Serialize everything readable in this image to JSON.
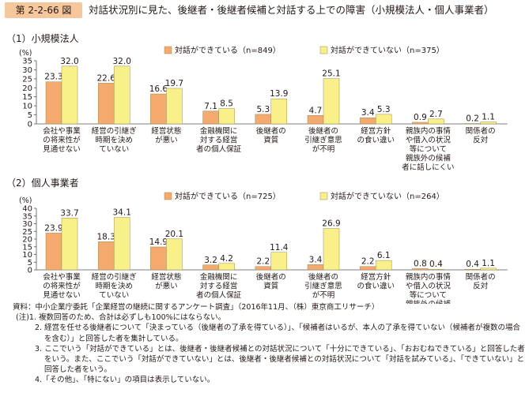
{
  "figure": {
    "number": "第 2-2-66 図",
    "title": "対話状況別に見た、後継者・後継者候補と対話する上での障害（小規模法人・個人事業者）"
  },
  "colors": {
    "series1": "#f4aa6e",
    "series2": "#faf08a",
    "stroke": "#9a8b55",
    "axis": "#555555",
    "header": "#f6c79c"
  },
  "chart_data": [
    {
      "type": "bar",
      "section_label": "（1）小規模法人",
      "unit_label": "(%)",
      "ylim": [
        0,
        35
      ],
      "yticks": [
        0,
        5,
        10,
        15,
        20,
        25,
        30,
        35
      ],
      "categories": [
        "会社や事業\n の将来性が\n 見通せない",
        "経営の引継ぎ\n時期を決め\nていない",
        "経営状態\nが悪い",
        "金融機関に\n対する経営\n者の個人保証",
        "後継者の\n資質",
        "後継者の\n引継ぎ意思\nが不明",
        "経営方針\nの食い違い",
        "親族内の事情\nや借入の状況\n等について\n親族外の候補\n者に話しにくい",
        "関係者の\n反対"
      ],
      "series": [
        {
          "name": "対話ができている（n=849）",
          "values": [
            23.3,
            22.6,
            16.6,
            7.1,
            5.3,
            4.7,
            3.4,
            0.9,
            0.2
          ]
        },
        {
          "name": "対話ができていない（n=375）",
          "values": [
            32.0,
            32.0,
            19.7,
            8.5,
            13.9,
            25.1,
            5.3,
            2.7,
            1.1
          ]
        }
      ]
    },
    {
      "type": "bar",
      "section_label": "（2）個人事業者",
      "unit_label": "(%)",
      "ylim": [
        0,
        40
      ],
      "yticks": [
        0,
        5,
        10,
        15,
        20,
        25,
        30,
        35,
        40
      ],
      "categories": [
        "会社や事業\n の将来性が\n 見通せない",
        "経営の引継ぎ\n時期を決め\nていない",
        "経営状態\nが悪い",
        "金融機関に\n対する経営\n者の個人保証",
        "後継者の\n資質",
        "後継者の\n引継ぎ意思\nが不明",
        "経営方針\nの食い違い",
        "親族内の事情\nや借入の状況\n等について\n親族外の候補\n者に話しにくい",
        "関係者の\n反対"
      ],
      "series": [
        {
          "name": "対話ができている（n=725）",
          "values": [
            23.9,
            18.3,
            14.9,
            3.2,
            2.2,
            3.4,
            2.2,
            0.8,
            0.4
          ]
        },
        {
          "name": "対話ができていない（n=264）",
          "values": [
            33.7,
            34.1,
            20.1,
            4.2,
            11.4,
            26.9,
            6.1,
            0.4,
            1.1
          ]
        }
      ]
    }
  ],
  "notes": {
    "source": "資料：中小企業庁委託「企業経営の継続に関するアンケート調査」（2016年11月、（株）東京商工リサーチ）",
    "note1": "(注)1. 複数回答のため、合計は必ずしも100%にはならない。",
    "note2": "2. 経営を任せる後継者について「決まっている（後継者の了承を得ている）」、「候補者はいるが、本人の了承を得ていない（候補者が複数の場合を含む）」と回答した者を集計している。",
    "note3": "3. ここでいう「対話ができている」とは、後継者・後継者候補との対話状況について「十分にできている」、「おおむねできている」と回答した者をいう。また、ここでいう「対話ができていない」とは、後継者・後継者候補との対話状況について「対話を試みている」、「できていない」と回答した者をいう。",
    "note4": "4.「その他」、「特にない」の項目は表示していない。"
  }
}
